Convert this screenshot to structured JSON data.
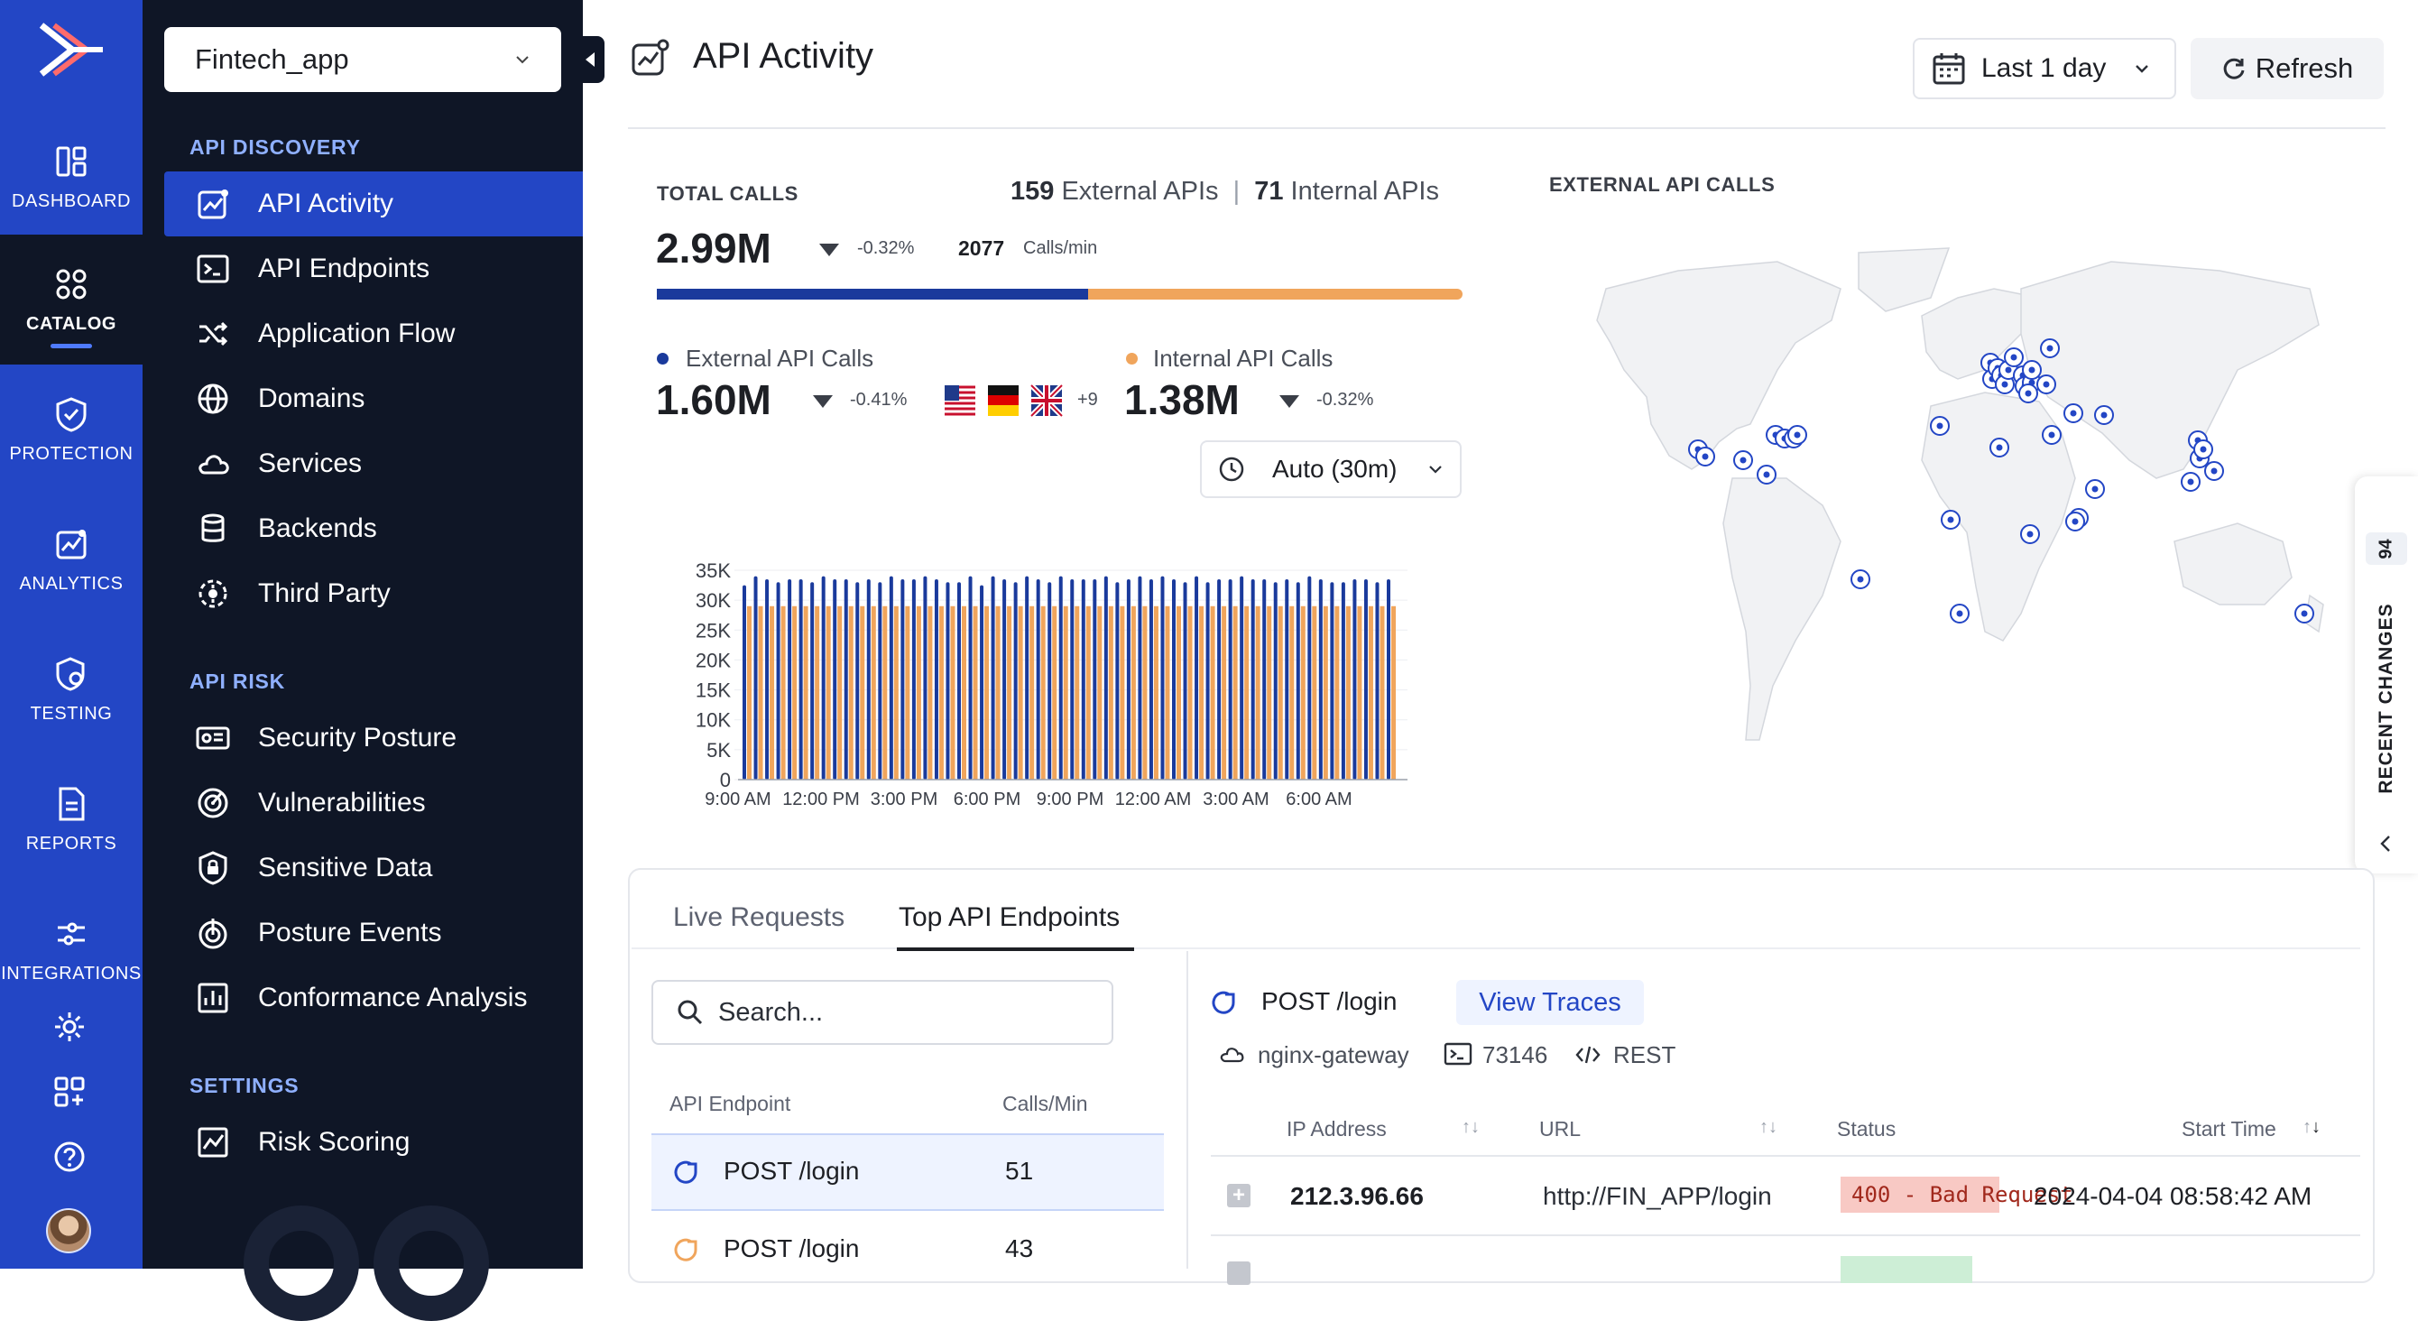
{
  "rail": {
    "items": [
      {
        "label": "DASHBOARD",
        "icon": "dashboard-icon"
      },
      {
        "label": "CATALOG",
        "icon": "catalog-icon"
      },
      {
        "label": "PROTECTION",
        "icon": "shield-icon"
      },
      {
        "label": "ANALYTICS",
        "icon": "analytics-icon"
      },
      {
        "label": "TESTING",
        "icon": "testing-icon"
      },
      {
        "label": "REPORTS",
        "icon": "report-icon"
      },
      {
        "label": "INTEGRATIONS",
        "icon": "integrations-icon"
      }
    ],
    "bottom_icons": [
      "gear-icon",
      "add-widget-icon",
      "help-icon"
    ],
    "accent": "#2346c5"
  },
  "sidebar": {
    "app_selector": "Fintech_app",
    "sections": [
      {
        "title": "API DISCOVERY",
        "items": [
          "API Activity",
          "API Endpoints",
          "Application Flow",
          "Domains",
          "Services",
          "Backends",
          "Third Party"
        ]
      },
      {
        "title": "API RISK",
        "items": [
          "Security Posture",
          "Vulnerabilities",
          "Sensitive Data",
          "Posture Events",
          "Conformance Analysis"
        ]
      },
      {
        "title": "SETTINGS",
        "items": [
          "Risk Scoring"
        ]
      }
    ],
    "active_item": "API Activity"
  },
  "header": {
    "title": "API Activity",
    "range_label": "Last 1 day",
    "refresh_label": "Refresh"
  },
  "stats": {
    "total_label": "TOTAL CALLS",
    "total_value": "2.99M",
    "total_delta": "-0.32%",
    "rate_value": "2077",
    "rate_unit": "Calls/min",
    "external_count": "159",
    "external_text": "External APIs",
    "separator": "|",
    "internal_count": "71",
    "internal_text": "Internal APIs",
    "split_external_fraction": 0.535,
    "external_label": "External API Calls",
    "external_value": "1.60M",
    "external_delta": "-0.41%",
    "flags_more": "+9",
    "internal_label": "Internal API Calls",
    "internal_value": "1.38M",
    "internal_delta": "-0.32%",
    "interval": "Auto (30m)",
    "colors": {
      "external": "#1a3a9c",
      "internal": "#f0a55c"
    }
  },
  "chart_data": {
    "type": "bar",
    "y_ticks": [
      "35K",
      "30K",
      "25K",
      "20K",
      "15K",
      "10K",
      "5K",
      "0"
    ],
    "x_ticks": [
      "9:00 AM",
      "12:00 PM",
      "3:00 PM",
      "6:00 PM",
      "9:00 PM",
      "12:00 AM",
      "3:00 AM",
      "6:00 AM"
    ],
    "ylim": [
      0,
      35000
    ],
    "series": [
      {
        "color": "#1a3a9c",
        "values": [
          32500,
          34000,
          33500,
          33000,
          33500,
          33500,
          33000,
          34000,
          33500,
          33500,
          33000,
          33500,
          33000,
          34000,
          33500,
          33500,
          34000,
          33500,
          33000,
          33000,
          34000,
          32500,
          34000,
          33500,
          33000,
          34000,
          33500,
          33000,
          34000,
          33500,
          33500,
          33500,
          34000,
          33000,
          33500,
          34000,
          33500,
          34000,
          33500,
          33000,
          34000,
          33000,
          33500,
          33500,
          34000,
          33500,
          33500,
          33000,
          33500,
          33000,
          34000,
          33500,
          33000,
          33000,
          33500,
          33500,
          33000,
          33500
        ]
      },
      {
        "color": "#f0a55c",
        "values": [
          29000,
          29000,
          29000,
          29000,
          29000,
          29000,
          29000,
          29000,
          29000,
          29000,
          29000,
          29000,
          29000,
          29000,
          29000,
          29000,
          29000,
          29000,
          29000,
          29000,
          29000,
          29000,
          29000,
          29000,
          29000,
          29000,
          29000,
          29000,
          29000,
          29000,
          29000,
          29000,
          29000,
          29000,
          29000,
          29000,
          29000,
          29000,
          29000,
          29000,
          29000,
          29000,
          29000,
          29000,
          29000,
          29000,
          29000,
          29000,
          29000,
          29000,
          29000,
          29000,
          29000,
          29000,
          29000,
          29000,
          29000,
          29000
        ]
      }
    ]
  },
  "map": {
    "title": "EXTERNAL API CALLS",
    "marker_color": "#2346c5"
  },
  "recent_changes": {
    "label": "RECENT CHANGES",
    "count": "94"
  },
  "panel": {
    "tabs": [
      "Live Requests",
      "Top API Endpoints"
    ],
    "active_tab": "Top API Endpoints",
    "search_placeholder": "Search...",
    "list_headers": [
      "API Endpoint",
      "Calls/Min"
    ],
    "list_rows": [
      {
        "endpoint": "POST /login",
        "calls": "51",
        "icon_color": "#2346c5"
      },
      {
        "endpoint": "POST /login",
        "calls": "43",
        "icon_color": "#f0a55c"
      }
    ],
    "detail": {
      "endpoint": "POST /login",
      "view_traces": "View Traces",
      "gateway": "nginx-gateway",
      "port": "73146",
      "protocol": "REST"
    },
    "trace_headers": [
      "IP Address",
      "URL",
      "Status",
      "Start Time"
    ],
    "trace_rows": [
      {
        "ip": "212.3.96.66",
        "url": "http://FIN_APP/login",
        "status": "400 - Bad Request",
        "start": "2024-04-04 08:58:42 AM"
      }
    ]
  }
}
